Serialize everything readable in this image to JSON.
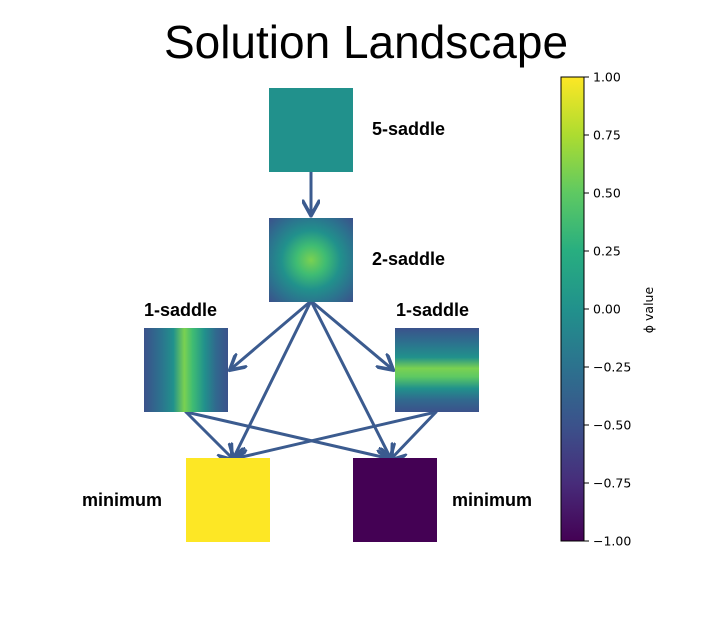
{
  "title": "Solution Landscape",
  "nodes": {
    "five_saddle": {
      "label": "5-saddle"
    },
    "two_saddle": {
      "label": "2-saddle"
    },
    "one_saddle_left": {
      "label": "1-saddle"
    },
    "one_saddle_right": {
      "label": "1-saddle"
    },
    "minimum_left": {
      "label": "minimum"
    },
    "minimum_right": {
      "label": "minimum"
    }
  },
  "colorbar": {
    "label": "ϕ value",
    "colormap": "viridis",
    "range": [
      -1.0,
      1.0
    ],
    "ticks": [
      "1.00",
      "0.75",
      "0.50",
      "0.25",
      "0.00",
      "−0.25",
      "−0.50",
      "−0.75",
      "−1.00"
    ]
  },
  "colors": {
    "arrow": "#3b5b8f",
    "viridis_low": "#440154",
    "viridis_mid": "#21918c",
    "viridis_high": "#fde725"
  }
}
